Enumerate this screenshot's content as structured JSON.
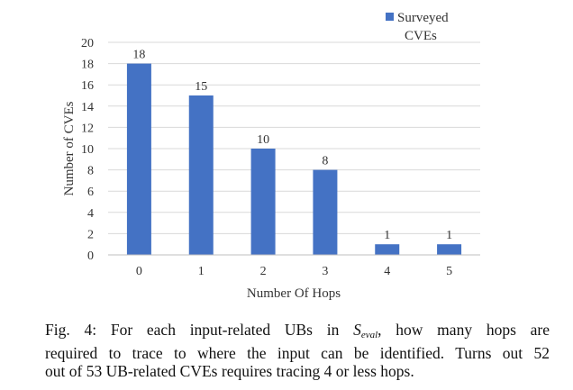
{
  "chart_data": {
    "type": "bar",
    "categories": [
      "0",
      "1",
      "2",
      "3",
      "4",
      "5"
    ],
    "series": [
      {
        "name": "Surveyed CVEs",
        "values": [
          18,
          15,
          10,
          8,
          1,
          1
        ],
        "color": "#4472c4"
      }
    ],
    "data_labels": [
      "18",
      "15",
      "10",
      "8",
      "1",
      "1"
    ],
    "xlabel": "Number Of Hops",
    "ylabel": "Number of CVEs",
    "ylim": [
      0,
      20
    ],
    "yticks": [
      "0",
      "2",
      "4",
      "6",
      "8",
      "10",
      "12",
      "14",
      "16",
      "18",
      "20"
    ],
    "legend": {
      "placement": "top-right",
      "label_lines": [
        "Surveyed",
        "CVEs"
      ]
    },
    "grid": true
  },
  "caption": {
    "line1_before": "Fig. 4: For each input-related UBs in ",
    "symbol_main": "S",
    "symbol_sub": "eval",
    "line1_after": ", how many hops are",
    "line2": "required to trace to where the input can be identified. Turns out 52",
    "line3": "out of 53 UB-related CVEs requires tracing 4 or less hops."
  }
}
